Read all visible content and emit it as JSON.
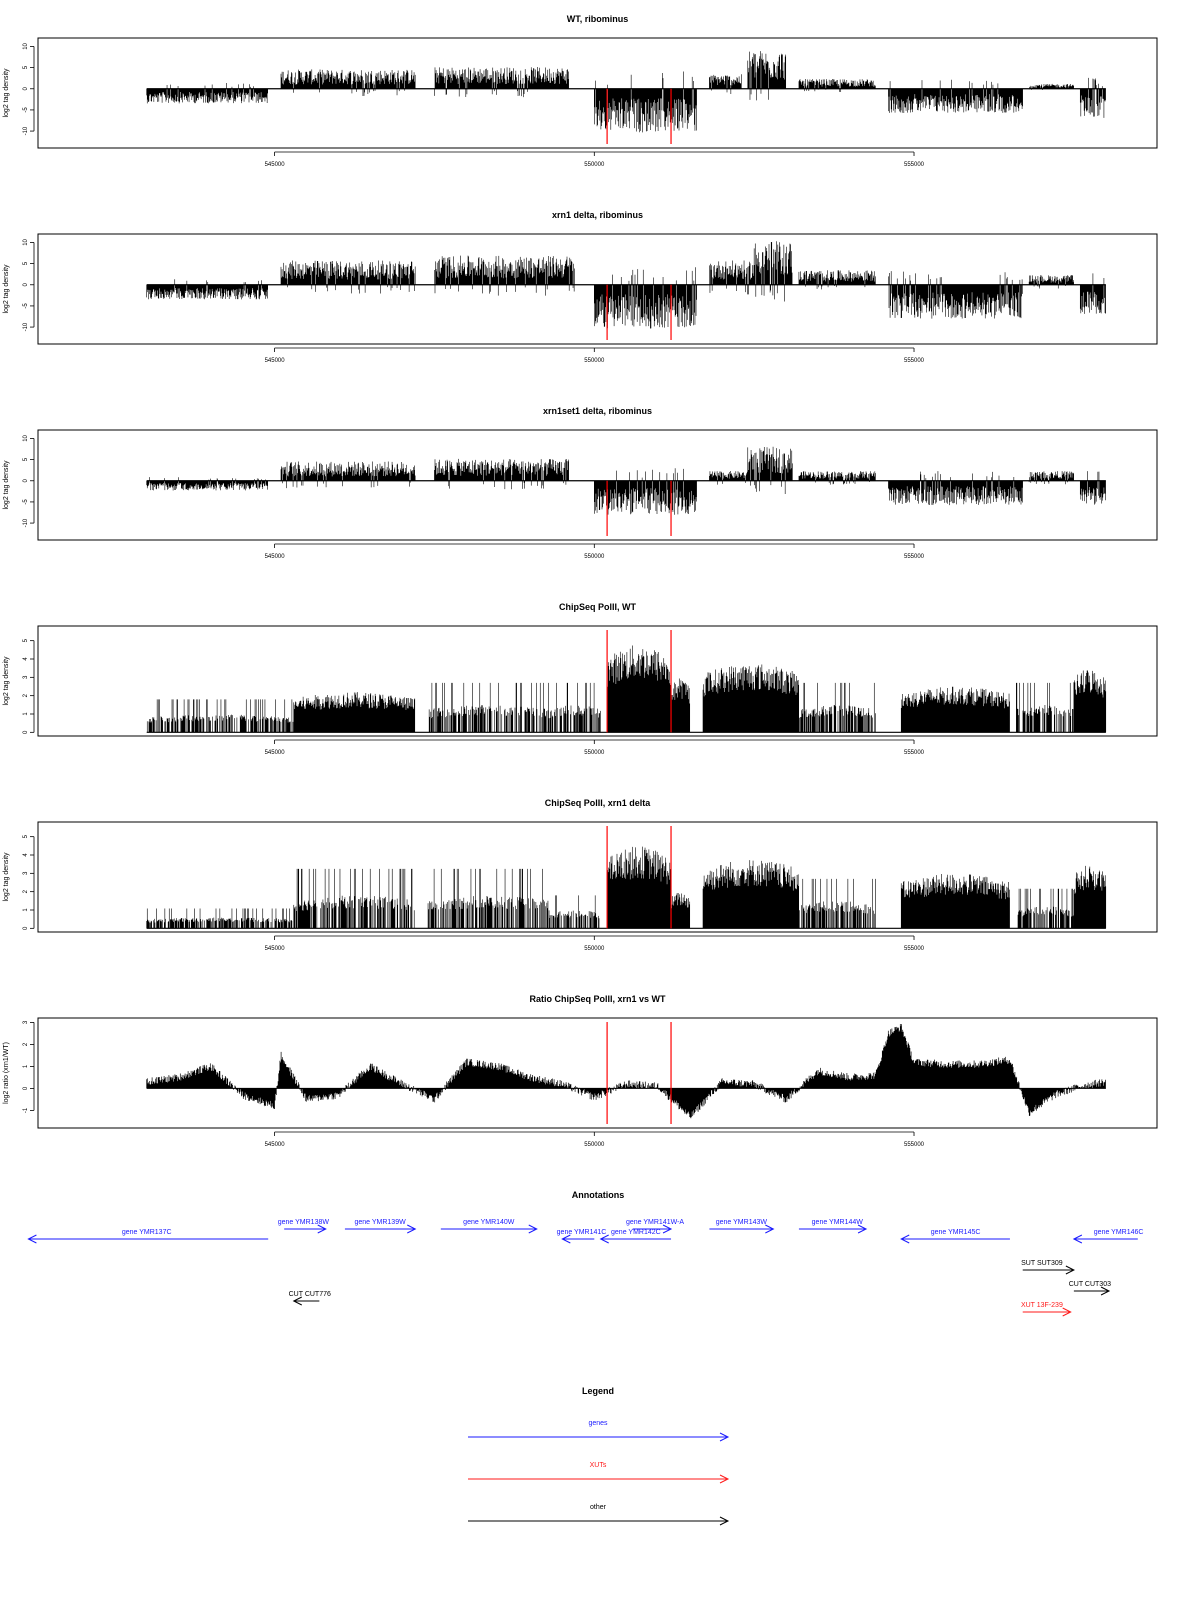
{
  "chart_data": [
    {
      "type": "bar",
      "title": "WT, ribominus",
      "ylabel": "log2 tag density",
      "ylim": [
        -14,
        12
      ],
      "y_ticks": [
        -10,
        -5,
        0,
        5,
        10
      ],
      "xlim": [
        541300,
        558800
      ],
      "x_ticks": [
        545000,
        550000,
        555000
      ],
      "markers": [
        550200,
        551200
      ],
      "series": {
        "segments": [
          {
            "x": [
              543000,
              544900
            ],
            "level": -3
          },
          {
            "x": [
              545100,
              547200
            ],
            "level": 4
          },
          {
            "x": [
              547500,
              549600
            ],
            "level": 4.5
          },
          {
            "x": [
              550000,
              551600
            ],
            "level": -9
          },
          {
            "x": [
              551800,
              552300
            ],
            "level": 3
          },
          {
            "x": [
              552400,
              553000
            ],
            "level": 8
          },
          {
            "x": [
              553200,
              554400
            ],
            "level": 2
          },
          {
            "x": [
              554600,
              556700
            ],
            "level": -5
          },
          {
            "x": [
              556800,
              557500
            ],
            "level": 1
          },
          {
            "x": [
              557600,
              558000
            ],
            "level": -6
          }
        ]
      }
    },
    {
      "type": "bar",
      "title": "xrn1 delta, ribominus",
      "ylabel": "log2 tag density",
      "ylim": [
        -14,
        12
      ],
      "y_ticks": [
        -10,
        -5,
        0,
        5,
        10
      ],
      "xlim": [
        541300,
        558800
      ],
      "x_ticks": [
        545000,
        550000,
        555000
      ],
      "markers": [
        550200,
        551200
      ],
      "series": {
        "segments": [
          {
            "x": [
              543000,
              544900
            ],
            "level": -3
          },
          {
            "x": [
              545100,
              547200
            ],
            "level": 5
          },
          {
            "x": [
              547500,
              549700
            ],
            "level": 6
          },
          {
            "x": [
              550000,
              551600
            ],
            "level": -9
          },
          {
            "x": [
              551800,
              552500
            ],
            "level": 5
          },
          {
            "x": [
              552500,
              553100
            ],
            "level": 9
          },
          {
            "x": [
              553200,
              554400
            ],
            "level": 3
          },
          {
            "x": [
              554600,
              556700
            ],
            "level": -7
          },
          {
            "x": [
              556800,
              557500
            ],
            "level": 2
          },
          {
            "x": [
              557600,
              558000
            ],
            "level": -6
          }
        ]
      }
    },
    {
      "type": "bar",
      "title": "xrn1set1 delta, ribominus",
      "ylabel": "log2 tag density",
      "ylim": [
        -14,
        12
      ],
      "y_ticks": [
        -10,
        -5,
        0,
        5,
        10
      ],
      "xlim": [
        541300,
        558800
      ],
      "x_ticks": [
        545000,
        550000,
        555000
      ],
      "markers": [
        550200,
        551200
      ],
      "series": {
        "segments": [
          {
            "x": [
              543000,
              544900
            ],
            "level": -2
          },
          {
            "x": [
              545100,
              547200
            ],
            "level": 4
          },
          {
            "x": [
              547500,
              549600
            ],
            "level": 4.5
          },
          {
            "x": [
              550000,
              551600
            ],
            "level": -7
          },
          {
            "x": [
              551800,
              552400
            ],
            "level": 2
          },
          {
            "x": [
              552400,
              553100
            ],
            "level": 7
          },
          {
            "x": [
              553200,
              554400
            ],
            "level": 2
          },
          {
            "x": [
              554600,
              556700
            ],
            "level": -5
          },
          {
            "x": [
              556800,
              557500
            ],
            "level": 2
          },
          {
            "x": [
              557600,
              558000
            ],
            "level": -5
          }
        ]
      }
    },
    {
      "type": "bar",
      "title": "ChipSeq PolII, WT",
      "ylabel": "log2 tag density",
      "ylim": [
        -0.2,
        5.8
      ],
      "y_ticks": [
        0,
        1,
        2,
        3,
        4,
        5
      ],
      "xlim": [
        541300,
        558800
      ],
      "x_ticks": [
        545000,
        550000,
        555000
      ],
      "markers": [
        550200,
        551200
      ],
      "series": {
        "segments": [
          {
            "x": [
              543000,
              545300
            ],
            "level": 1
          },
          {
            "x": [
              545300,
              547200
            ],
            "level": 2.2
          },
          {
            "x": [
              547400,
              549300
            ],
            "level": 1.5
          },
          {
            "x": [
              549300,
              550100
            ],
            "level": 1.5
          },
          {
            "x": [
              550200,
              551200
            ],
            "level": 4.8
          },
          {
            "x": [
              551200,
              551500
            ],
            "level": 3
          },
          {
            "x": [
              551700,
              553200
            ],
            "level": 3.8
          },
          {
            "x": [
              553200,
              554400
            ],
            "level": 1.5
          },
          {
            "x": [
              554800,
              556500
            ],
            "level": 2.5
          },
          {
            "x": [
              556600,
              557500
            ],
            "level": 1.5
          },
          {
            "x": [
              557500,
              558000
            ],
            "level": 3.5
          }
        ]
      }
    },
    {
      "type": "bar",
      "title": "ChipSeq PolII, xrn1 delta",
      "ylabel": "log2 tag density",
      "ylim": [
        -0.2,
        5.8
      ],
      "y_ticks": [
        0,
        1,
        2,
        3,
        4,
        5
      ],
      "xlim": [
        541300,
        558800
      ],
      "x_ticks": [
        545000,
        550000,
        555000
      ],
      "markers": [
        550200,
        551200
      ],
      "series": {
        "segments": [
          {
            "x": [
              543000,
              545300
            ],
            "level": 0.6
          },
          {
            "x": [
              545300,
              547200
            ],
            "level": 1.8
          },
          {
            "x": [
              547400,
              549300
            ],
            "level": 1.8
          },
          {
            "x": [
              549300,
              550100
            ],
            "level": 1
          },
          {
            "x": [
              550200,
              551200
            ],
            "level": 4.5
          },
          {
            "x": [
              551200,
              551500
            ],
            "level": 2
          },
          {
            "x": [
              551700,
              553200
            ],
            "level": 3.8
          },
          {
            "x": [
              553200,
              554400
            ],
            "level": 1.5
          },
          {
            "x": [
              554800,
              556500
            ],
            "level": 3
          },
          {
            "x": [
              556600,
              557500
            ],
            "level": 1.2
          },
          {
            "x": [
              557500,
              558000
            ],
            "level": 3.5
          }
        ]
      }
    },
    {
      "type": "area",
      "title": "Ratio ChipSeq PolII, xrn1 vs WT",
      "ylabel": "log2 ratio (xrn1/WT)",
      "ylim": [
        -1.8,
        3.2
      ],
      "y_ticks": [
        -1,
        0,
        1,
        2,
        3
      ],
      "xlim": [
        541300,
        558800
      ],
      "x_ticks": [
        545000,
        550000,
        555000
      ],
      "markers": [
        550200,
        551200
      ],
      "series": {
        "x": [
          543000,
          543500,
          544000,
          544500,
          545000,
          545100,
          545500,
          546000,
          546500,
          547000,
          547500,
          548000,
          548500,
          549000,
          549500,
          550000,
          550500,
          551000,
          551500,
          552000,
          552500,
          553000,
          553500,
          554000,
          554400,
          554600,
          554800,
          555000,
          555500,
          556000,
          556500,
          556800,
          557200,
          557600,
          558000
        ],
        "values": [
          0.3,
          0.5,
          1.0,
          -0.3,
          -0.8,
          1.5,
          -0.5,
          -0.3,
          1.0,
          0.2,
          -0.5,
          1.2,
          1.0,
          0.5,
          0.2,
          -0.4,
          0.2,
          0.1,
          -1.3,
          0.3,
          0.2,
          -0.5,
          0.8,
          0.5,
          0.6,
          2.5,
          2.8,
          1.2,
          1.1,
          1.1,
          1.3,
          -1.1,
          -0.3,
          0.1,
          0.3
        ]
      }
    }
  ],
  "annotations": {
    "title": "Annotations",
    "xlim": [
      541300,
      558800
    ],
    "features": [
      {
        "label": "gene YMR137C",
        "x0": 541150,
        "x1": 544900,
        "dir": "left",
        "type": "gene",
        "row": 0,
        "label_x": 543000
      },
      {
        "label": "gene YMR138W",
        "x0": 545150,
        "x1": 545800,
        "dir": "right",
        "type": "gene",
        "row": 0,
        "label_x": 545450
      },
      {
        "label": "gene YMR139W",
        "x0": 546100,
        "x1": 547200,
        "dir": "right",
        "type": "gene",
        "row": 0,
        "label_x": 546650
      },
      {
        "label": "gene YMR140W",
        "x0": 547600,
        "x1": 549100,
        "dir": "right",
        "type": "gene",
        "row": 0,
        "label_x": 548350
      },
      {
        "label": "gene YMR141C",
        "x0": 549500,
        "x1": 550000,
        "dir": "left",
        "type": "gene",
        "row": 0,
        "label_x": 549800
      },
      {
        "label": "gene YMR141W-A",
        "x0": 550600,
        "x1": 551200,
        "dir": "right",
        "type": "gene",
        "row": 0,
        "label_x": 550950
      },
      {
        "label": "gene YMR142C",
        "x0": 550100,
        "x1": 551200,
        "dir": "left",
        "type": "gene",
        "row": 0,
        "label_x": 550650
      },
      {
        "label": "gene YMR143W",
        "x0": 551800,
        "x1": 552800,
        "dir": "right",
        "type": "gene",
        "row": 0,
        "label_x": 552300
      },
      {
        "label": "gene YMR144W",
        "x0": 553200,
        "x1": 554250,
        "dir": "right",
        "type": "gene",
        "row": 0,
        "label_x": 553800
      },
      {
        "label": "gene YMR145C",
        "x0": 554800,
        "x1": 556500,
        "dir": "left",
        "type": "gene",
        "row": 0,
        "label_x": 555650
      },
      {
        "label": "gene YMR146C",
        "x0": 557500,
        "x1": 558500,
        "dir": "left",
        "type": "gene",
        "row": 0,
        "label_x": 558200
      },
      {
        "label": "SUT SUT309",
        "x0": 556700,
        "x1": 557500,
        "dir": "right",
        "type": "other",
        "row": 1,
        "label_x": 557000
      },
      {
        "label": "CUT CUT303",
        "x0": 557500,
        "x1": 558050,
        "dir": "right",
        "type": "other",
        "row": 2,
        "label_x": 557750
      },
      {
        "label": "CUT CUT776",
        "x0": 545300,
        "x1": 545700,
        "dir": "left",
        "type": "other",
        "row": 3,
        "label_x": 545550
      },
      {
        "label": "XUT 13F-239",
        "x0": 556700,
        "x1": 557450,
        "dir": "right",
        "type": "xut",
        "row": 4,
        "label_x": 557000
      }
    ]
  },
  "legend": {
    "title": "Legend",
    "items": [
      {
        "label": "genes",
        "type": "gene"
      },
      {
        "label": "XUTs",
        "type": "xut"
      },
      {
        "label": "other",
        "type": "other"
      }
    ]
  },
  "colors": {
    "gene": "#1a1aff",
    "xut": "#ff1a1a",
    "other": "#000000",
    "marker": "#ff0000",
    "data": "#000000"
  }
}
